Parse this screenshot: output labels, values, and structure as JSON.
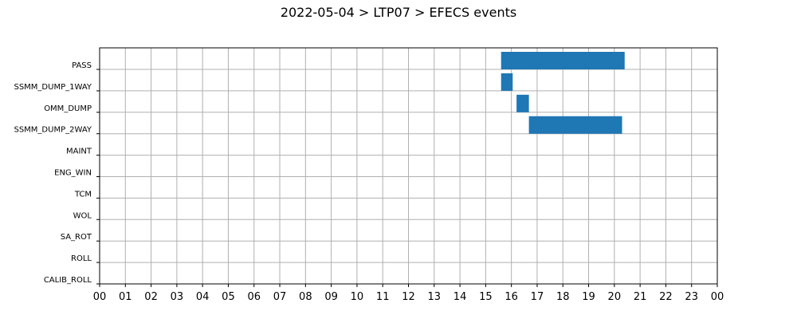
{
  "title": "2022-05-04 > LTP07 > EFECS events",
  "colors": {
    "bar": "#1f77b4",
    "grid": "#b0b0b0",
    "axis": "#000000"
  },
  "chart_data": {
    "type": "bar",
    "orientation": "horizontal-timeline",
    "title": "2022-05-04 > LTP07 > EFECS events",
    "xlabel": "",
    "ylabel": "",
    "grid": true,
    "x_range": [
      0,
      24
    ],
    "x_tick_labels": [
      "00",
      "01",
      "02",
      "03",
      "04",
      "05",
      "06",
      "07",
      "08",
      "09",
      "10",
      "11",
      "12",
      "13",
      "14",
      "15",
      "16",
      "17",
      "18",
      "19",
      "20",
      "21",
      "22",
      "23",
      "00"
    ],
    "categories": [
      "PASS",
      "SSMM_DUMP_1WAY",
      "OMM_DUMP",
      "SSMM_DUMP_2WAY",
      "MAINT",
      "ENG_WIN",
      "TCM",
      "WOL",
      "SA_ROT",
      "ROLL",
      "CALIB_ROLL"
    ],
    "events": [
      {
        "category": "PASS",
        "start": 15.6,
        "end": 20.4
      },
      {
        "category": "SSMM_DUMP_1WAY",
        "start": 15.6,
        "end": 16.05
      },
      {
        "category": "OMM_DUMP",
        "start": 16.2,
        "end": 16.68
      },
      {
        "category": "SSMM_DUMP_2WAY",
        "start": 16.68,
        "end": 20.3
      }
    ]
  }
}
